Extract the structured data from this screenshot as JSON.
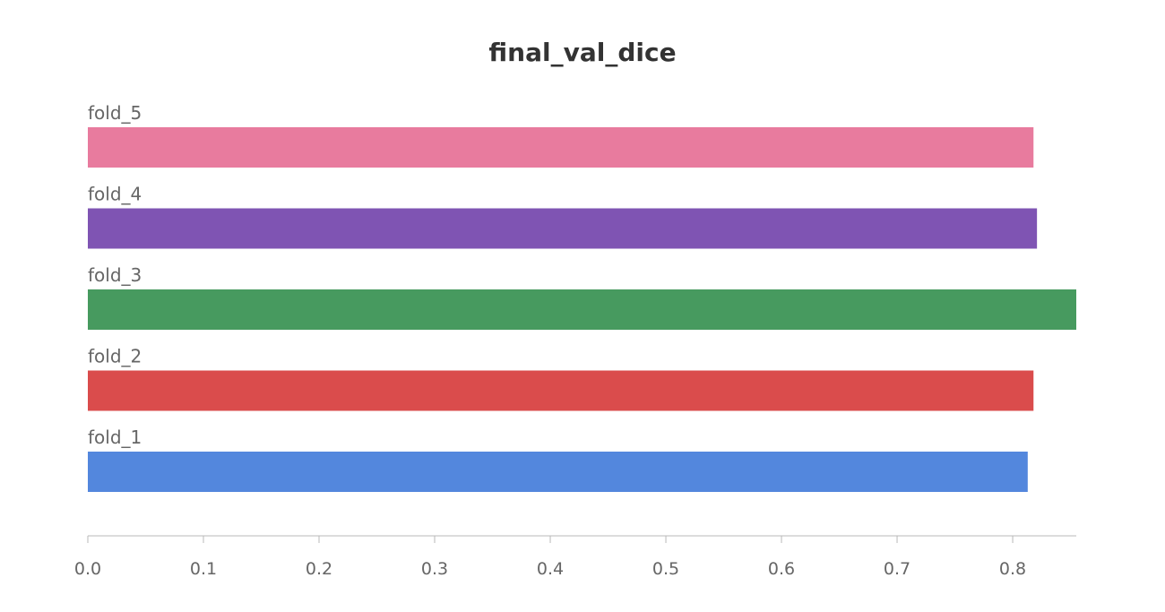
{
  "chart_data": {
    "type": "bar",
    "orientation": "horizontal",
    "title": "final_val_dice",
    "xlabel": "",
    "ylabel": "",
    "xlim": [
      0,
      0.855
    ],
    "xticks": [
      0,
      0.1,
      0.2,
      0.3,
      0.4,
      0.5,
      0.6,
      0.7,
      0.8
    ],
    "xtick_labels": [
      "0.0",
      "0.1",
      "0.2",
      "0.3",
      "0.4",
      "0.5",
      "0.6",
      "0.7",
      "0.8"
    ],
    "grid": false,
    "legend": "none",
    "categories": [
      "fold_5",
      "fold_4",
      "fold_3",
      "fold_2",
      "fold_1"
    ],
    "values": [
      0.818,
      0.821,
      0.855,
      0.818,
      0.813
    ],
    "colors": [
      "#E87B9E",
      "#7F54B3",
      "#479A5F",
      "#DA4C4C",
      "#5387DD"
    ]
  }
}
